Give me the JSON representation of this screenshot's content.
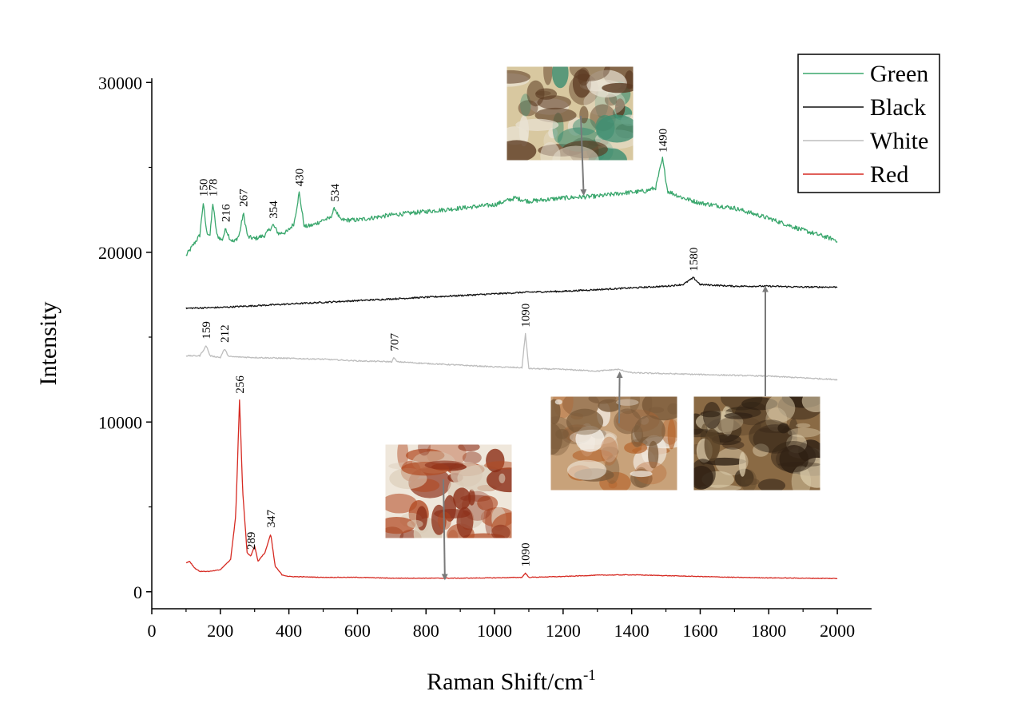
{
  "chart_data": {
    "type": "line",
    "title": "",
    "xlabel": "Raman Shift/cm",
    "xlabel_sup": "-1",
    "ylabel": "Intensity",
    "xlim": [
      0,
      2100
    ],
    "ylim": [
      -1000,
      31000
    ],
    "x_ticks": [
      0,
      200,
      400,
      600,
      800,
      1000,
      1200,
      1400,
      1600,
      1800,
      2000
    ],
    "y_ticks": [
      0,
      10000,
      20000,
      30000
    ],
    "grid": false,
    "legend_position": "top-right",
    "series": [
      {
        "name": "Green",
        "color": "#3aa76d",
        "points": [
          [
            100,
            19800
          ],
          [
            120,
            20400
          ],
          [
            140,
            21000
          ],
          [
            150,
            22900
          ],
          [
            160,
            21200
          ],
          [
            170,
            21000
          ],
          [
            178,
            22900
          ],
          [
            190,
            21000
          ],
          [
            205,
            20700
          ],
          [
            216,
            21400
          ],
          [
            228,
            20800
          ],
          [
            240,
            20600
          ],
          [
            255,
            21000
          ],
          [
            267,
            22300
          ],
          [
            280,
            20900
          ],
          [
            300,
            20800
          ],
          [
            330,
            21000
          ],
          [
            354,
            21600
          ],
          [
            370,
            21100
          ],
          [
            395,
            21200
          ],
          [
            415,
            21700
          ],
          [
            430,
            23500
          ],
          [
            445,
            21500
          ],
          [
            470,
            21600
          ],
          [
            500,
            21900
          ],
          [
            520,
            22000
          ],
          [
            534,
            22600
          ],
          [
            550,
            21900
          ],
          [
            600,
            21900
          ],
          [
            700,
            22200
          ],
          [
            800,
            22400
          ],
          [
            900,
            22600
          ],
          [
            1000,
            22800
          ],
          [
            1060,
            23200
          ],
          [
            1100,
            23000
          ],
          [
            1150,
            23100
          ],
          [
            1200,
            23200
          ],
          [
            1300,
            23300
          ],
          [
            1380,
            23500
          ],
          [
            1440,
            23600
          ],
          [
            1470,
            23800
          ],
          [
            1490,
            25500
          ],
          [
            1505,
            23600
          ],
          [
            1550,
            23200
          ],
          [
            1600,
            22900
          ],
          [
            1700,
            22600
          ],
          [
            1800,
            22000
          ],
          [
            1900,
            21300
          ],
          [
            2000,
            20700
          ]
        ]
      },
      {
        "name": "Black",
        "color": "#111111",
        "points": [
          [
            100,
            16700
          ],
          [
            200,
            16750
          ],
          [
            300,
            16850
          ],
          [
            400,
            16950
          ],
          [
            500,
            17050
          ],
          [
            600,
            17150
          ],
          [
            700,
            17250
          ],
          [
            800,
            17350
          ],
          [
            900,
            17450
          ],
          [
            1000,
            17550
          ],
          [
            1100,
            17650
          ],
          [
            1200,
            17700
          ],
          [
            1300,
            17800
          ],
          [
            1400,
            17900
          ],
          [
            1500,
            18000
          ],
          [
            1550,
            18100
          ],
          [
            1580,
            18500
          ],
          [
            1600,
            18100
          ],
          [
            1700,
            18000
          ],
          [
            1800,
            18000
          ],
          [
            1900,
            17950
          ],
          [
            2000,
            17950
          ]
        ]
      },
      {
        "name": "White",
        "color": "#bdbdbd",
        "points": [
          [
            100,
            13900
          ],
          [
            140,
            13900
          ],
          [
            159,
            14500
          ],
          [
            170,
            13900
          ],
          [
            200,
            13800
          ],
          [
            212,
            14300
          ],
          [
            225,
            13850
          ],
          [
            300,
            13800
          ],
          [
            400,
            13750
          ],
          [
            500,
            13700
          ],
          [
            600,
            13600
          ],
          [
            700,
            13550
          ],
          [
            707,
            13800
          ],
          [
            715,
            13550
          ],
          [
            800,
            13450
          ],
          [
            900,
            13350
          ],
          [
            1000,
            13250
          ],
          [
            1080,
            13200
          ],
          [
            1090,
            15200
          ],
          [
            1100,
            13150
          ],
          [
            1200,
            13100
          ],
          [
            1300,
            13000
          ],
          [
            1360,
            13100
          ],
          [
            1400,
            12900
          ],
          [
            1500,
            12850
          ],
          [
            1600,
            12800
          ],
          [
            1700,
            12750
          ],
          [
            1800,
            12700
          ],
          [
            1900,
            12600
          ],
          [
            2000,
            12500
          ]
        ]
      },
      {
        "name": "Red",
        "color": "#d62a22",
        "points": [
          [
            100,
            1700
          ],
          [
            110,
            1800
          ],
          [
            125,
            1400
          ],
          [
            140,
            1200
          ],
          [
            170,
            1200
          ],
          [
            200,
            1300
          ],
          [
            230,
            1900
          ],
          [
            245,
            4500
          ],
          [
            256,
            11300
          ],
          [
            265,
            6000
          ],
          [
            278,
            2300
          ],
          [
            289,
            2100
          ],
          [
            300,
            2700
          ],
          [
            310,
            1800
          ],
          [
            330,
            2300
          ],
          [
            347,
            3400
          ],
          [
            360,
            1500
          ],
          [
            380,
            1000
          ],
          [
            400,
            900
          ],
          [
            500,
            850
          ],
          [
            600,
            850
          ],
          [
            700,
            800
          ],
          [
            800,
            800
          ],
          [
            900,
            800
          ],
          [
            1000,
            820
          ],
          [
            1080,
            850
          ],
          [
            1090,
            1100
          ],
          [
            1100,
            850
          ],
          [
            1200,
            900
          ],
          [
            1300,
            980
          ],
          [
            1400,
            1000
          ],
          [
            1500,
            950
          ],
          [
            1600,
            900
          ],
          [
            1700,
            850
          ],
          [
            1800,
            820
          ],
          [
            1900,
            800
          ],
          [
            2000,
            780
          ]
        ]
      }
    ],
    "annotations": [
      {
        "series": "Green",
        "text": "150",
        "x": 150
      },
      {
        "series": "Green",
        "text": "178",
        "x": 178
      },
      {
        "series": "Green",
        "text": "216",
        "x": 216
      },
      {
        "series": "Green",
        "text": "267",
        "x": 267
      },
      {
        "series": "Green",
        "text": "354",
        "x": 354
      },
      {
        "series": "Green",
        "text": "430",
        "x": 430
      },
      {
        "series": "Green",
        "text": "534",
        "x": 534
      },
      {
        "series": "Green",
        "text": "1490",
        "x": 1490
      },
      {
        "series": "Black",
        "text": "1580",
        "x": 1580
      },
      {
        "series": "White",
        "text": "159",
        "x": 159
      },
      {
        "series": "White",
        "text": "212",
        "x": 212
      },
      {
        "series": "White",
        "text": "707",
        "x": 707
      },
      {
        "series": "White",
        "text": "1090",
        "x": 1090
      },
      {
        "series": "Red",
        "text": "256",
        "x": 256
      },
      {
        "series": "Red",
        "text": "289",
        "x": 289
      },
      {
        "series": "Red",
        "text": "347",
        "x": 347
      },
      {
        "series": "Red",
        "text": "1090",
        "x": 1090
      }
    ],
    "insets": [
      {
        "name": "green-sample-micrograph",
        "colors": [
          "#d8c8a0",
          "#3f8f72",
          "#5b3a22",
          "#e9e2d3"
        ],
        "arrow_to": [
          1260,
          23400
        ]
      },
      {
        "name": "white-sample-micrograph",
        "colors": [
          "#c8a27a",
          "#f3ede4",
          "#b6652d",
          "#7a5a3a"
        ],
        "arrow_to": [
          1365,
          12900
        ]
      },
      {
        "name": "black-sample-micrograph",
        "colors": [
          "#8a6a44",
          "#2e2013",
          "#d9c9a8",
          "#5a4328"
        ],
        "arrow_to": [
          1790,
          17950
        ]
      },
      {
        "name": "red-sample-micrograph",
        "colors": [
          "#efe7db",
          "#b24a22",
          "#8c2f18",
          "#d9cab6"
        ],
        "arrow_to": [
          855,
          750
        ]
      }
    ]
  }
}
